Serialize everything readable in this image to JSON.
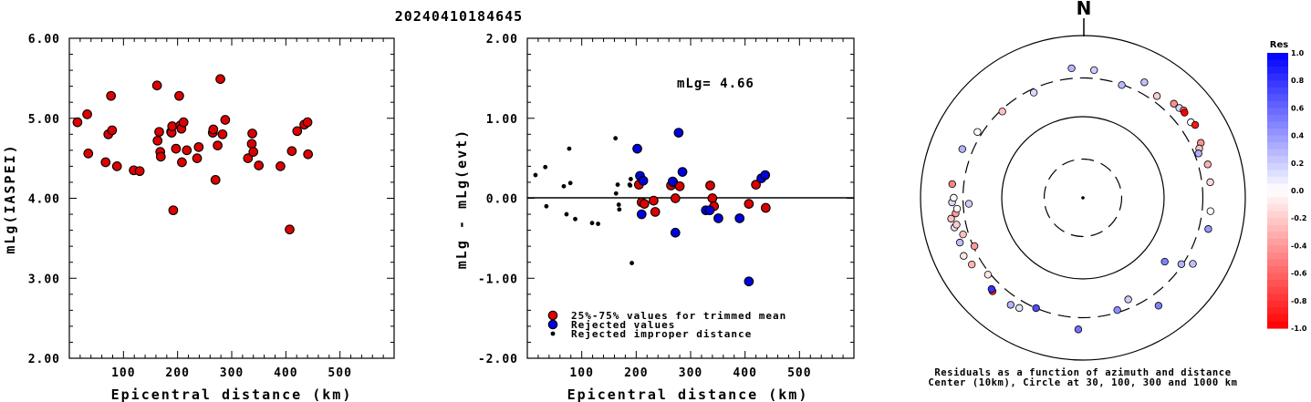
{
  "title": "20240410184645",
  "chart_data": [
    {
      "type": "scatter",
      "ylabel": "mLg(IASPEI)",
      "xlabel": "Epicentral distance (km)",
      "xlim": [
        0,
        600
      ],
      "ylim": [
        2.0,
        6.0
      ],
      "xticks": [
        "100",
        "200",
        "300",
        "400",
        "500"
      ],
      "yticks": [
        "2.00",
        "3.00",
        "4.00",
        "5.00",
        "6.00"
      ],
      "series": [
        {
          "color": "#dd0000",
          "x": [
            15,
            33,
            35,
            67,
            72,
            77,
            79,
            88,
            119,
            130,
            162,
            163,
            166,
            168,
            169,
            188,
            189,
            190,
            192,
            197,
            203,
            205,
            207,
            208,
            211,
            217,
            236,
            239,
            265,
            266,
            270,
            274,
            279,
            283,
            288,
            330,
            337,
            338,
            340,
            350,
            390,
            407,
            411,
            421,
            434,
            440,
            441
          ],
          "y": [
            4.95,
            5.05,
            4.56,
            4.45,
            4.8,
            5.28,
            4.85,
            4.4,
            4.35,
            4.34,
            5.41,
            4.72,
            4.83,
            4.58,
            4.52,
            4.83,
            4.82,
            4.9,
            3.85,
            4.62,
            5.28,
            4.91,
            4.87,
            4.45,
            4.95,
            4.6,
            4.5,
            4.64,
            4.82,
            4.86,
            4.23,
            4.66,
            5.49,
            4.8,
            4.98,
            4.5,
            4.68,
            4.81,
            4.58,
            4.41,
            4.4,
            3.61,
            4.59,
            4.84,
            4.92,
            4.95,
            4.55
          ]
        }
      ]
    },
    {
      "type": "scatter",
      "ylabel": "mLg - mLg(evt)",
      "xlabel": "Epicentral distance (km)",
      "xlim": [
        0,
        600
      ],
      "ylim": [
        -2.0,
        2.0
      ],
      "xticks": [
        "100",
        "200",
        "300",
        "400",
        "500"
      ],
      "yticks": [
        "-2.00",
        "-1.00",
        "0.00",
        "1.00",
        "2.00"
      ],
      "annotation": "mLg= 4.66",
      "series": [
        {
          "name": "25%-75% values for trimmed mean",
          "marker": "circle",
          "color": "#dd0000",
          "x": [
            205,
            210,
            215,
            232,
            235,
            264,
            268,
            272,
            280,
            336,
            340,
            343,
            407,
            420,
            438
          ],
          "y": [
            0.17,
            -0.05,
            -0.07,
            -0.03,
            -0.17,
            0.16,
            0.2,
            0.0,
            0.15,
            0.16,
            0.0,
            -0.1,
            -0.07,
            0.17,
            -0.12
          ]
        },
        {
          "name": "Rejected values",
          "marker": "circle",
          "color": "#0000dd",
          "x": [
            202,
            207,
            210,
            213,
            267,
            272,
            278,
            285,
            328,
            335,
            351,
            390,
            407,
            430,
            437
          ],
          "y": [
            0.62,
            0.28,
            -0.2,
            0.22,
            0.21,
            -0.43,
            0.82,
            0.33,
            -0.15,
            -0.15,
            -0.25,
            -0.25,
            -1.04,
            0.25,
            0.29
          ]
        },
        {
          "name": "Rejected improper distance",
          "marker": "dot",
          "color": "#000000",
          "x": [
            15,
            33,
            35,
            67,
            72,
            77,
            79,
            88,
            119,
            130,
            162,
            163,
            166,
            168,
            169,
            188,
            189,
            190,
            192
          ],
          "y": [
            0.29,
            0.39,
            -0.1,
            0.15,
            -0.2,
            0.62,
            0.19,
            -0.26,
            -0.31,
            -0.32,
            0.75,
            0.06,
            0.17,
            -0.08,
            -0.14,
            0.17,
            0.16,
            0.24,
            -0.81
          ]
        }
      ]
    },
    {
      "type": "polar-scatter",
      "north_label": "N",
      "caption_line1": "Residuals as a function of azimuth and distance",
      "caption_line2": "Center (10km), Circle at 30, 100, 300 and 1000 km",
      "rings_km": [
        10,
        30,
        100,
        300,
        1000
      ],
      "colorbar": {
        "title": "Res",
        "min": -1.0,
        "max": 1.0,
        "tick_labels": [
          "1.0",
          "0.8",
          "0.6",
          "0.4",
          "0.2",
          "0.0",
          "-0.2",
          "-0.4",
          "-0.6",
          "-0.8",
          "-1.0"
        ]
      },
      "stations": [
        {
          "az": 19,
          "dist_km": 295,
          "res": 0.28
        },
        {
          "az": 55,
          "dist_km": 420,
          "res": 0.0
        },
        {
          "az": 57,
          "dist_km": 445,
          "res": -0.9
        },
        {
          "az": 65,
          "dist_km": 400,
          "res": -0.42
        },
        {
          "az": 67,
          "dist_km": 360,
          "res": -0.25
        },
        {
          "az": 69,
          "dist_km": 335,
          "res": 0.31
        },
        {
          "az": 75,
          "dist_km": 390,
          "res": -0.3
        },
        {
          "az": 83,
          "dist_km": 380,
          "res": -0.15
        },
        {
          "az": 96,
          "dist_km": 380,
          "res": 0.02
        },
        {
          "az": 104,
          "dist_km": 390,
          "res": 0.4
        },
        {
          "az": 124,
          "dist_km": 290,
          "res": 0.3
        },
        {
          "az": 128,
          "dist_km": 190,
          "res": 0.5
        },
        {
          "az": 163,
          "dist_km": 280,
          "res": 0.45
        },
        {
          "az": 182,
          "dist_km": 420,
          "res": 0.55
        },
        {
          "az": 203,
          "dist_km": 300,
          "res": 0.7
        },
        {
          "az": 224,
          "dist_km": 400,
          "res": -0.9
        },
        {
          "az": 225,
          "dist_km": 390,
          "res": 0.8
        },
        {
          "az": 231,
          "dist_km": 320,
          "res": -0.1
        },
        {
          "az": 239,
          "dist_km": 395,
          "res": -0.3
        },
        {
          "az": 244,
          "dist_km": 430,
          "res": -0.1
        },
        {
          "az": 246,
          "dist_km": 290,
          "res": -0.4
        },
        {
          "az": 250,
          "dist_km": 410,
          "res": 0.25
        },
        {
          "az": 253,
          "dist_km": 350,
          "res": -0.25
        },
        {
          "az": 257,
          "dist_km": 420,
          "res": 0.1
        },
        {
          "az": 258,
          "dist_km": 390,
          "res": -0.2
        },
        {
          "az": 261,
          "dist_km": 440,
          "res": -0.25
        },
        {
          "az": 263,
          "dist_km": 380,
          "res": -0.4
        },
        {
          "az": 265,
          "dist_km": 360,
          "res": 0.0
        },
        {
          "az": 267,
          "dist_km": 255,
          "res": 0.2
        },
        {
          "az": 268,
          "dist_km": 410,
          "res": 0.15
        },
        {
          "az": 270,
          "dist_km": 390,
          "res": 0.0
        },
        {
          "az": 276,
          "dist_km": 415,
          "res": -0.5
        },
        {
          "az": 292,
          "dist_km": 400,
          "res": 0.3
        },
        {
          "az": 302,
          "dist_km": 340,
          "res": 0.0
        },
        {
          "az": 317,
          "dist_km": 285,
          "res": -0.25
        },
        {
          "az": 335,
          "dist_km": 270,
          "res": 0.15
        },
        {
          "az": 355,
          "dist_km": 400,
          "res": 0.3
        },
        {
          "az": 5,
          "dist_km": 380,
          "res": 0.2
        },
        {
          "az": 28,
          "dist_km": 410,
          "res": 0.25
        },
        {
          "az": 36,
          "dist_km": 355,
          "res": -0.2
        },
        {
          "az": 44,
          "dist_km": 410,
          "res": -0.45
        },
        {
          "az": 47,
          "dist_km": 420,
          "res": 0.15
        },
        {
          "az": 49,
          "dist_km": 440,
          "res": -0.6
        },
        {
          "az": 50,
          "dist_km": 430,
          "res": -1.0
        },
        {
          "az": 121,
          "dist_km": 380,
          "res": 0.25
        },
        {
          "az": 145,
          "dist_km": 420,
          "res": 0.5
        },
        {
          "az": 156,
          "dist_km": 235,
          "res": 0.2
        },
        {
          "az": 210,
          "dist_km": 370,
          "res": 0.1
        },
        {
          "az": 214,
          "dist_km": 390,
          "res": 0.3
        }
      ]
    }
  ]
}
